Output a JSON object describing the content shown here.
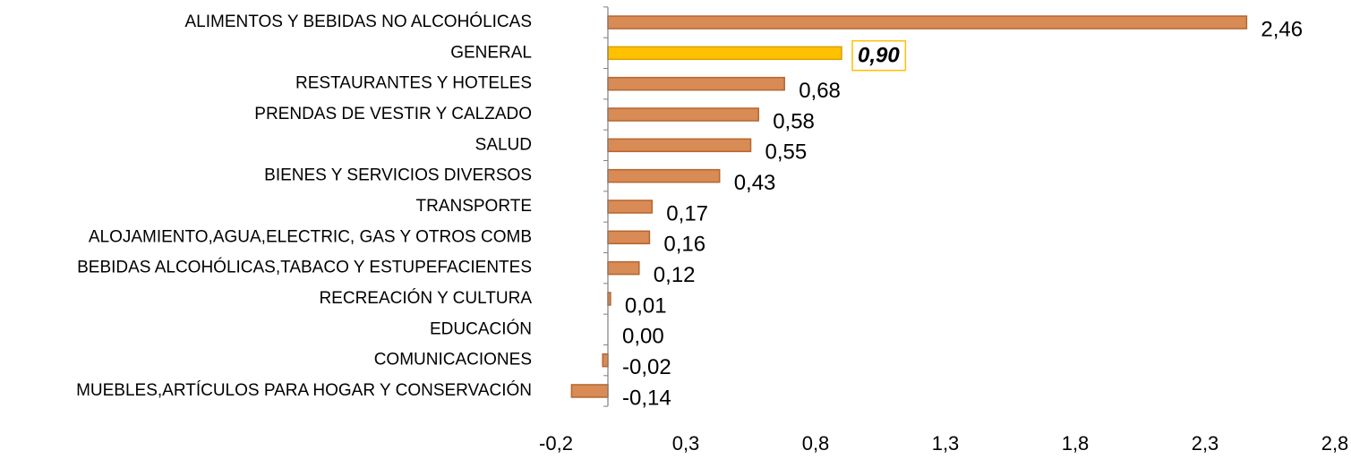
{
  "chart_data": {
    "type": "hbar",
    "categories": [
      "ALIMENTOS Y BEBIDAS NO ALCOHÓLICAS",
      "GENERAL",
      "RESTAURANTES Y HOTELES",
      "PRENDAS DE VESTIR Y CALZADO",
      "SALUD",
      "BIENES Y SERVICIOS DIVERSOS",
      "TRANSPORTE",
      "ALOJAMIENTO,AGUA,ELECTRIC, GAS Y OTROS COMB",
      "BEBIDAS ALCOHÓLICAS,TABACO Y ESTUPEFACIENTES",
      "RECREACIÓN Y CULTURA",
      "EDUCACIÓN",
      "COMUNICACIONES",
      "MUEBLES,ARTÍCULOS PARA HOGAR Y CONSERVACIÓN"
    ],
    "values": [
      2.46,
      0.9,
      0.68,
      0.58,
      0.55,
      0.43,
      0.17,
      0.16,
      0.12,
      0.01,
      0.0,
      -0.02,
      -0.14
    ],
    "value_labels": [
      "2,46",
      "0,90",
      "0,68",
      "0,58",
      "0,55",
      "0,43",
      "0,17",
      "0,16",
      "0,12",
      "0,01",
      "0,00",
      "-0,02",
      "-0,14"
    ],
    "colors": [
      "#d98b55",
      "#ffc000",
      "#d98b55",
      "#d98b55",
      "#d98b55",
      "#d98b55",
      "#d98b55",
      "#d98b55",
      "#d98b55",
      "#d98b55",
      "#d98b55",
      "#d98b55",
      "#d98b55"
    ],
    "xlim": [
      -0.2,
      2.8
    ],
    "xticks": [
      {
        "value": -0.2,
        "label": "-0,2"
      },
      {
        "value": 0.3,
        "label": "0,3"
      },
      {
        "value": 0.8,
        "label": "0,8"
      },
      {
        "value": 1.3,
        "label": "1,3"
      },
      {
        "value": 1.8,
        "label": "1,8"
      },
      {
        "value": 2.3,
        "label": "2,3"
      },
      {
        "value": 2.8,
        "label": "2,8"
      }
    ],
    "grid": false
  }
}
